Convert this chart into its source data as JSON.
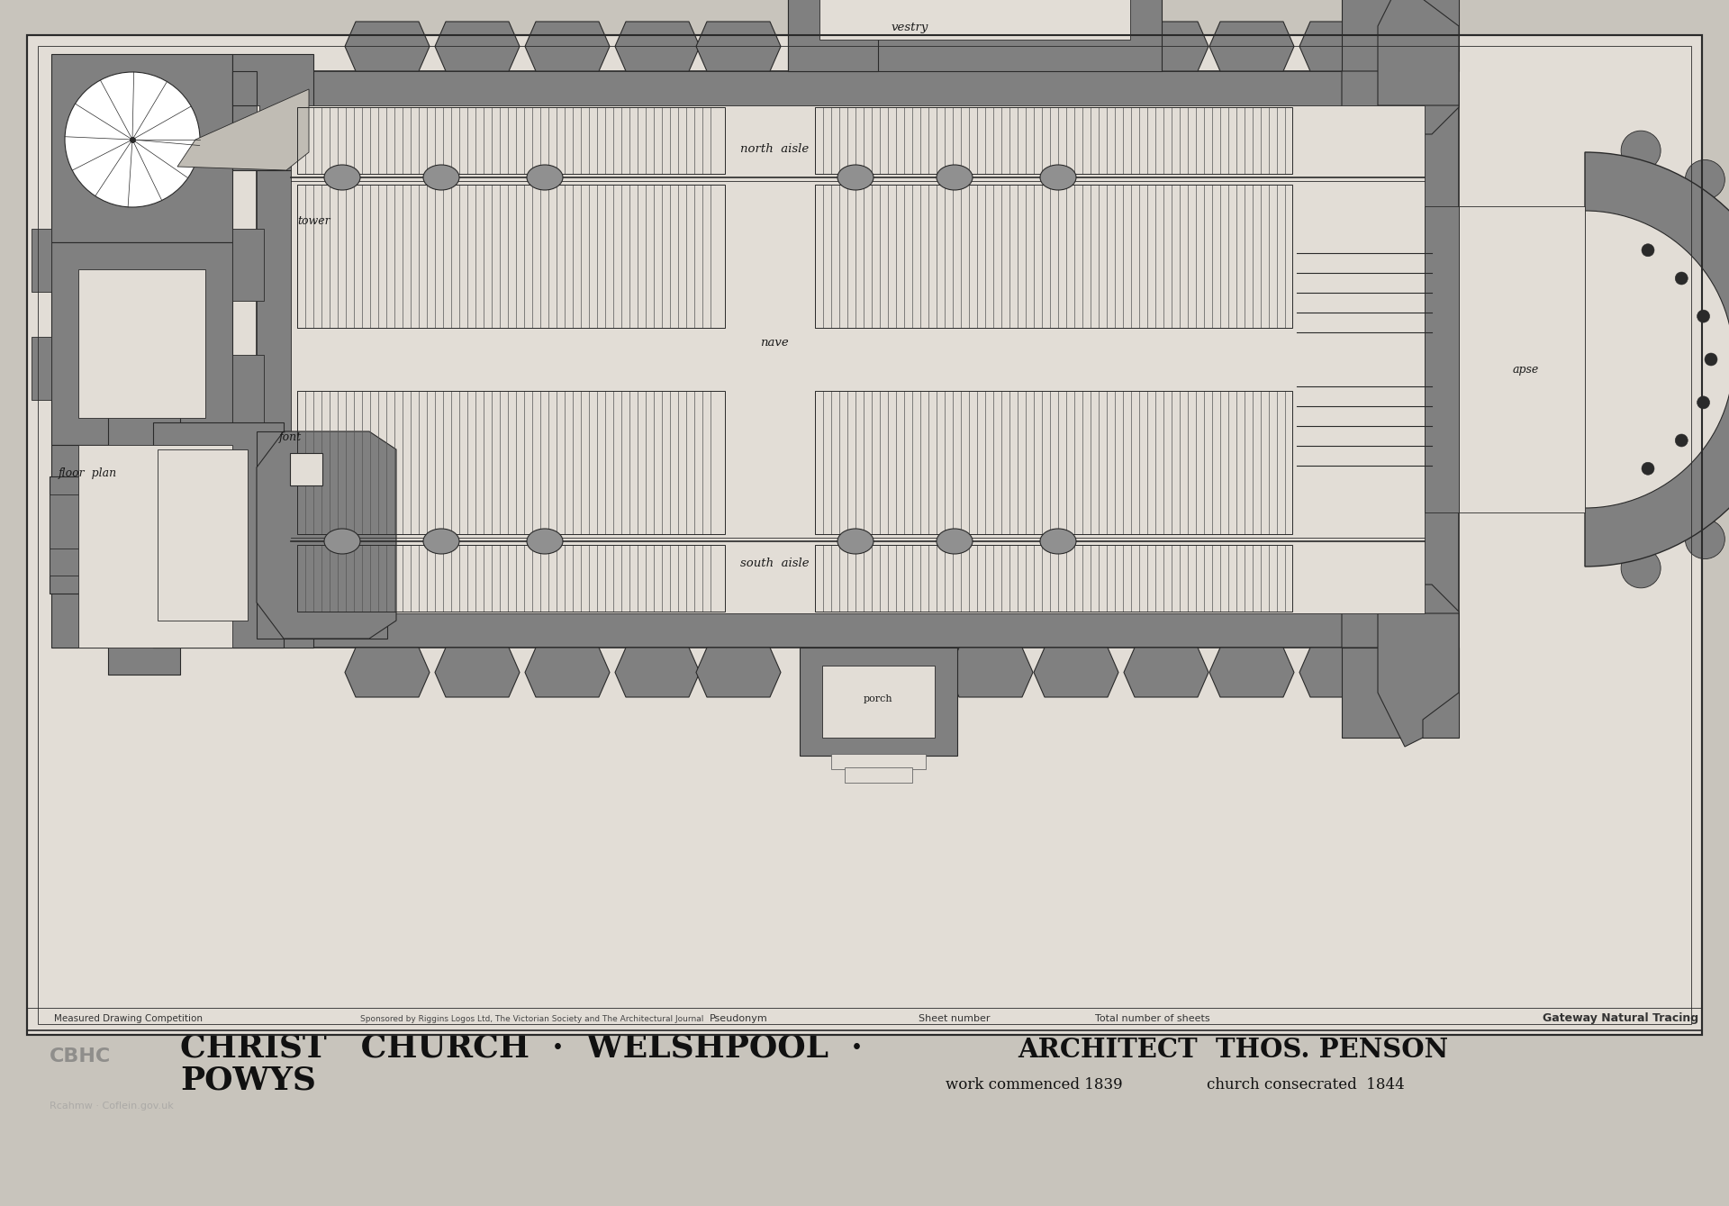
{
  "bg_color": "#c8c4bc",
  "paper_color": "#e2ddd6",
  "wall_color": "#808080",
  "line_color": "#2a2a2a",
  "pew_color": "#555555",
  "title_line1": "CHRIST   CHURCH  ·  WELSHPOOL  ·",
  "title_line2": "POWYS",
  "architect_line": "ARCHITECT  THOS. PENSON",
  "work_line": "work commenced 1839",
  "consecrated_line": "church consecrated  1844",
  "label_tower": "tower",
  "label_font": "font",
  "label_north": "north  aisle",
  "label_nave": "nave",
  "label_south": "south  aisle",
  "label_apse": "apse",
  "label_vestry": "vestry",
  "label_porch": "porch",
  "label_floor_plan": "floor  plan",
  "footer_left": "Measured Drawing Competition",
  "footer_sponsor": "Sponsored by Riggins Logos Ltd, The Victorian Society and The Architectural Journal",
  "footer_pseudonym": "Pseudonym",
  "footer_sheet": "Sheet number",
  "footer_total": "Total number of sheets",
  "footer_right": "Gateway Natural Tracing"
}
